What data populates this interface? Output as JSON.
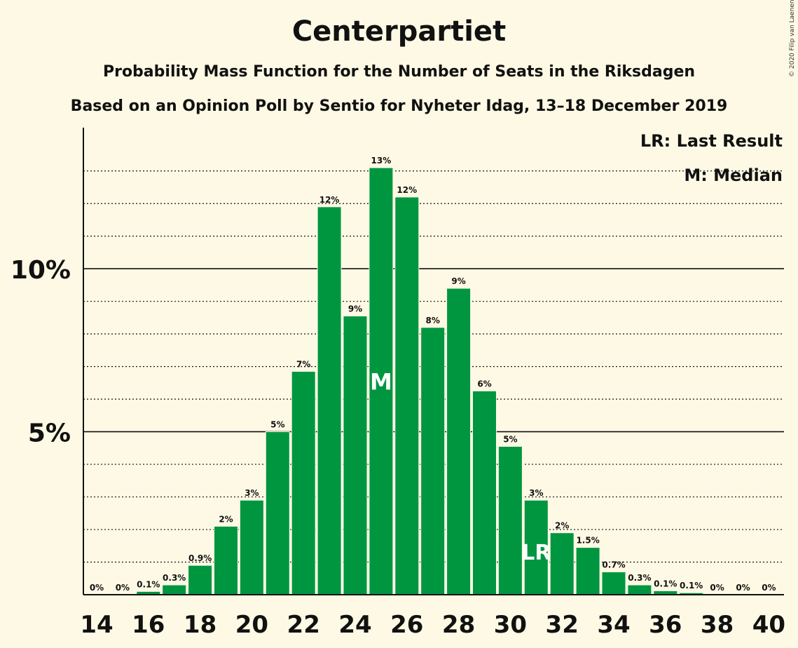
{
  "title": "Centerpartiet",
  "subtitle": "Probability Mass Function for the Number of Seats in the Riksdagen",
  "subtitle2": "Based on an Opinion Poll by Sentio for Nyheter Idag, 13–18 December 2019",
  "copyright": "© 2020 Filip van Laenen",
  "legend": {
    "last_result": "LR: Last Result",
    "median": "M: Median"
  },
  "colors": {
    "bar": "#009640",
    "background": "#FEF9E4",
    "text": "#111111"
  },
  "chart_data": {
    "type": "bar",
    "x": [
      14,
      15,
      16,
      17,
      18,
      19,
      20,
      21,
      22,
      23,
      24,
      25,
      26,
      27,
      28,
      29,
      30,
      31,
      32,
      33,
      34,
      35,
      36,
      37,
      38,
      39,
      40
    ],
    "values": [
      0,
      0,
      0.1,
      0.3,
      0.9,
      2.1,
      2.9,
      5.0,
      6.85,
      11.9,
      8.55,
      13.1,
      12.2,
      8.2,
      9.4,
      6.25,
      4.55,
      2.9,
      1.9,
      1.45,
      0.7,
      0.3,
      0.12,
      0.06,
      0,
      0,
      0
    ],
    "labels": [
      "0%",
      "0%",
      "0.1%",
      "0.3%",
      "0.9%",
      "2%",
      "3%",
      "5%",
      "7%",
      "12%",
      "9%",
      "13%",
      "12%",
      "8%",
      "9%",
      "6%",
      "5%",
      "3%",
      "2%",
      "1.5%",
      "0.7%",
      "0.3%",
      "0.1%",
      "0.1%",
      "0%",
      "0%",
      "0%"
    ],
    "x_tick_labels": [
      "14",
      "16",
      "18",
      "20",
      "22",
      "24",
      "26",
      "28",
      "30",
      "32",
      "34",
      "36",
      "38",
      "40"
    ],
    "y_ticks": [
      {
        "value": 5,
        "label": "5%"
      },
      {
        "value": 10,
        "label": "10%"
      }
    ],
    "ylim": [
      0,
      14.3
    ],
    "minor_gridlines": [
      1,
      2,
      3,
      4,
      6,
      7,
      8,
      9,
      11,
      12,
      13
    ],
    "median_seat": 25,
    "median_marker": "M",
    "last_result_seat": 31,
    "last_result_marker": "LR"
  }
}
